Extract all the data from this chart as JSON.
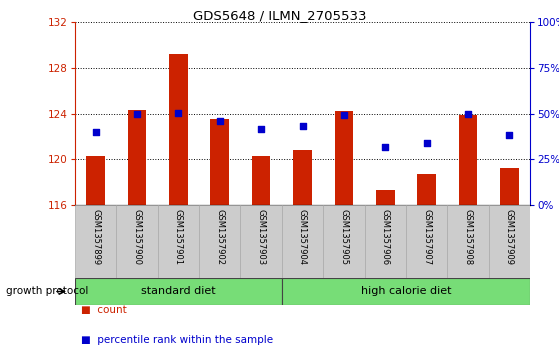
{
  "title": "GDS5648 / ILMN_2705533",
  "samples": [
    "GSM1357899",
    "GSM1357900",
    "GSM1357901",
    "GSM1357902",
    "GSM1357903",
    "GSM1357904",
    "GSM1357905",
    "GSM1357906",
    "GSM1357907",
    "GSM1357908",
    "GSM1357909"
  ],
  "counts": [
    120.3,
    124.3,
    129.2,
    123.5,
    120.3,
    120.8,
    124.2,
    117.3,
    118.7,
    123.9,
    119.2
  ],
  "percentiles": [
    40.0,
    49.5,
    50.5,
    46.0,
    41.5,
    43.0,
    49.0,
    31.5,
    34.0,
    49.5,
    38.5
  ],
  "bar_color": "#cc2200",
  "point_color": "#0000cc",
  "ylim_left": [
    116,
    132
  ],
  "ylim_right": [
    0,
    100
  ],
  "yticks_left": [
    116,
    120,
    124,
    128,
    132
  ],
  "yticks_right": [
    0,
    25,
    50,
    75,
    100
  ],
  "ytick_labels_right": [
    "0%",
    "25%",
    "50%",
    "75%",
    "100%"
  ],
  "standard_diet_count": 5,
  "standard_diet_label": "standard diet",
  "high_calorie_label": "high calorie diet",
  "growth_protocol_label": "growth protocol",
  "legend_count_label": "count",
  "legend_pct_label": "percentile rank within the sample",
  "group_bg_color": "#77dd77",
  "tick_bg_color": "#cccccc",
  "grid_lines": [
    120,
    124,
    128
  ],
  "background_color": "#ffffff"
}
